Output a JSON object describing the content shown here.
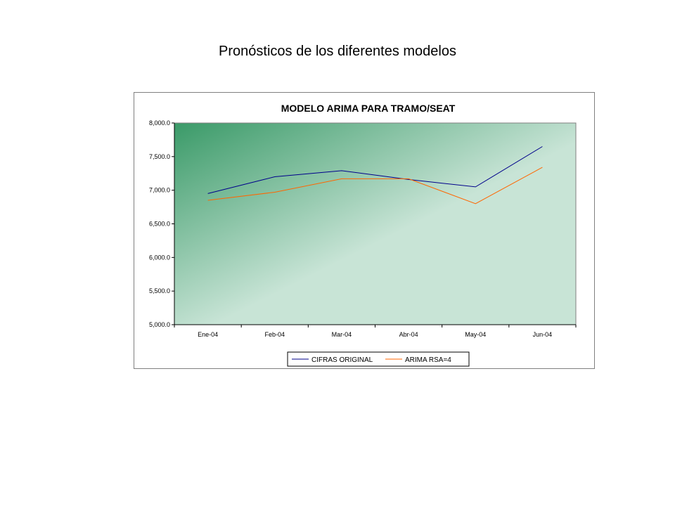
{
  "page": {
    "title": "Pronósticos de los diferentes modelos"
  },
  "chart_data": {
    "type": "line",
    "title": "MODELO ARIMA PARA TRAMO/SEAT",
    "categories": [
      "Ene-04",
      "Feb-04",
      "Mar-04",
      "Abr-04",
      "May-04",
      "Jun-04"
    ],
    "series": [
      {
        "name": "CIFRAS ORIGINAL",
        "color": "#00008b",
        "values": [
          6950,
          7200,
          7290,
          7160,
          7050,
          7650
        ]
      },
      {
        "name": "ARIMA RSA=4",
        "color": "#ff6600",
        "values": [
          6850,
          6970,
          7170,
          7170,
          6800,
          7340
        ]
      }
    ],
    "ylim": [
      5000,
      8000
    ],
    "yticks": [
      5000,
      5500,
      6000,
      6500,
      7000,
      7500,
      8000
    ],
    "ytick_labels": [
      "5,000.0",
      "5,500.0",
      "6,000.0",
      "6,500.0",
      "7,000.0",
      "7,500.0",
      "8,000.0"
    ],
    "xlabel": "",
    "ylabel": "",
    "grid": false,
    "legend_position": "bottom",
    "plot_background": [
      "#3a9a68",
      "#c8e4d6"
    ]
  }
}
